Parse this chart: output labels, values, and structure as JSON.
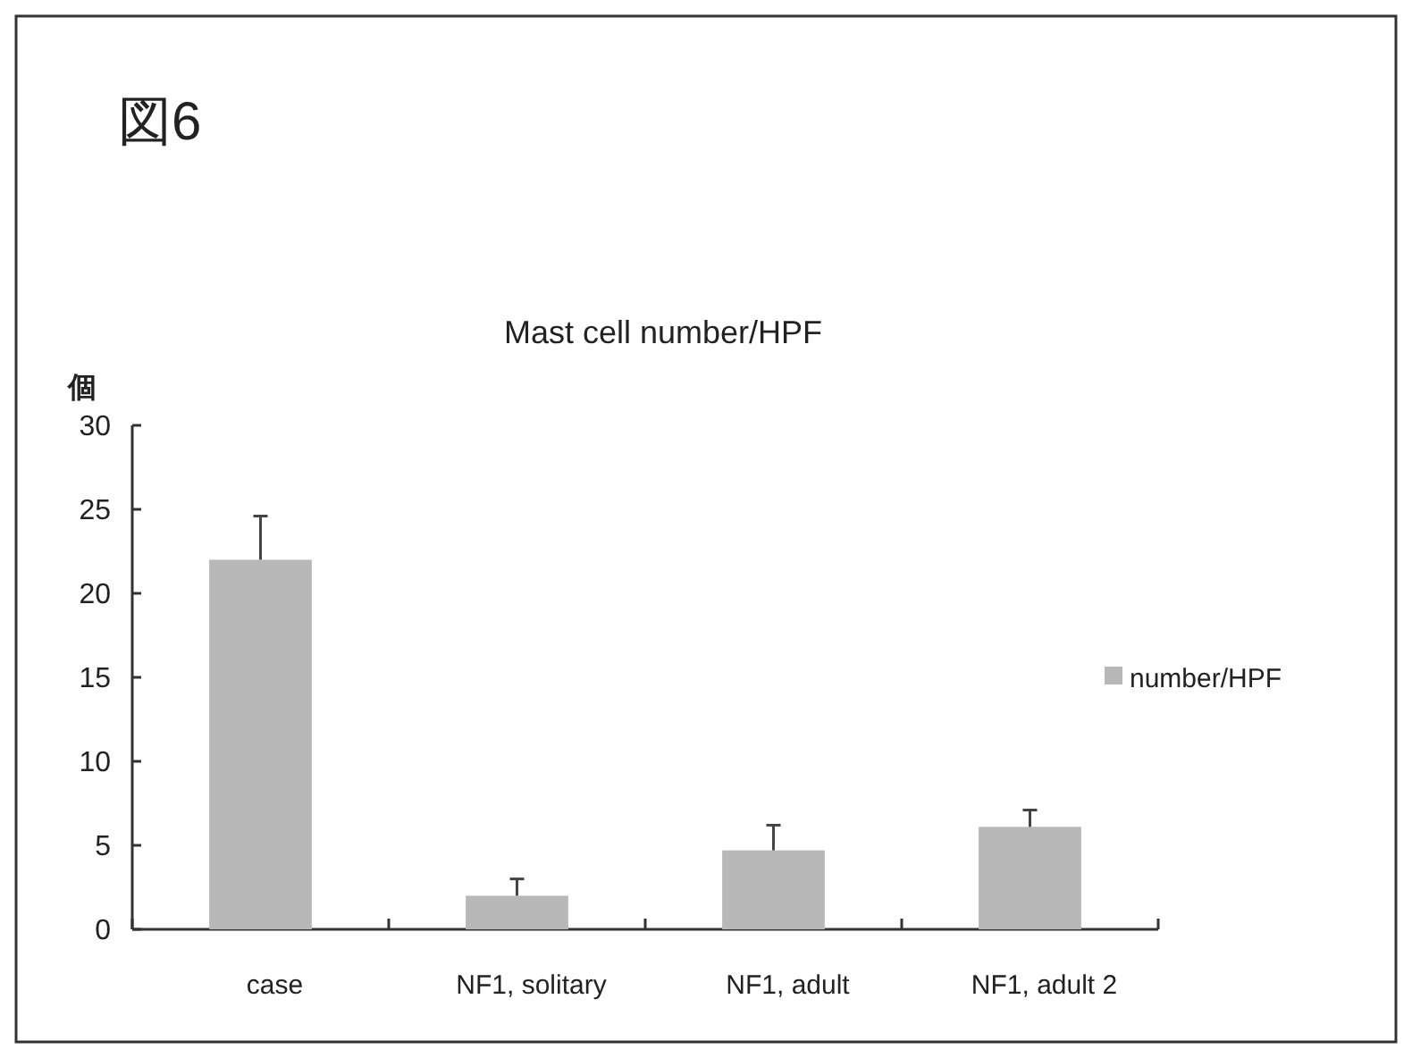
{
  "chart_data": {
    "type": "bar",
    "title": "Mast cell number/HPF",
    "ylabel": "個",
    "annotations": [
      "図6"
    ],
    "categories": [
      "case",
      "NF1, solitary",
      "NF1, adult",
      "NF1, adult 2"
    ],
    "series": [
      {
        "name": "number/HPF",
        "color": "#b8b8b8",
        "values": [
          22,
          2,
          4.7,
          6.1
        ],
        "errors": [
          2.6,
          1,
          1.5,
          1
        ]
      }
    ],
    "ylim": [
      0,
      30
    ],
    "yticks": [
      0,
      5,
      10,
      15,
      20,
      25,
      30
    ],
    "legend": "right"
  }
}
